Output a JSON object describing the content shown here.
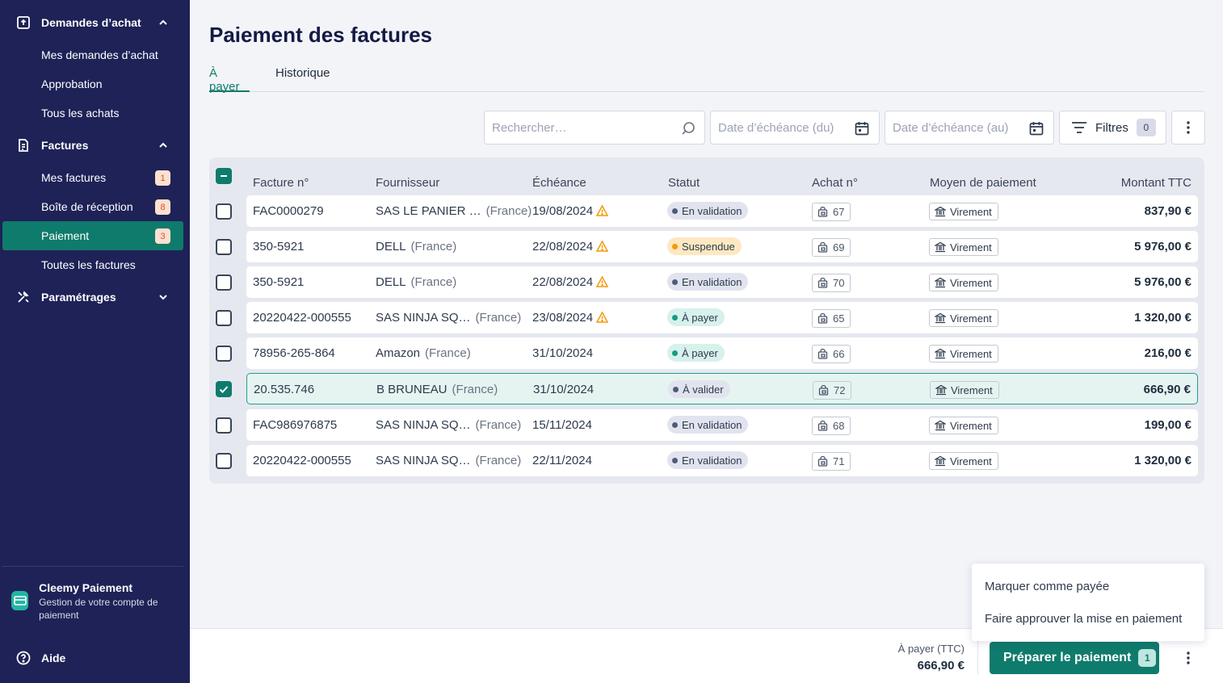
{
  "sidebar": {
    "purchase_requests": {
      "label": "Demandes d’achat",
      "items": [
        "Mes demandes d’achat",
        "Approbation",
        "Tous les achats"
      ]
    },
    "invoices": {
      "label": "Factures",
      "items": [
        {
          "label": "Mes factures",
          "badge": "1"
        },
        {
          "label": "Boîte de réception",
          "badge": "8"
        },
        {
          "label": "Paiement",
          "badge": "3",
          "active": true
        },
        {
          "label": "Toutes les factures",
          "badge": ""
        }
      ]
    },
    "settings": {
      "label": "Paramétrages"
    },
    "product": {
      "title": "Cleemy Paiement",
      "subtitle": "Gestion de votre compte de paiement"
    },
    "help": "Aide"
  },
  "page": {
    "title": "Paiement des factures",
    "tabs": [
      "À payer",
      "Historique"
    ],
    "active_tab": "À payer"
  },
  "toolbar": {
    "search_placeholder": "Rechercher…",
    "date_from_placeholder": "Date d’échéance (du)",
    "date_to_placeholder": "Date d’échéance (au)",
    "filters_label": "Filtres",
    "filters_count": "0"
  },
  "table": {
    "headers": [
      "Facture n°",
      "Fournisseur",
      "Échéance",
      "Statut",
      "Achat n°",
      "Moyen de paiement",
      "Montant TTC"
    ],
    "rows": [
      {
        "invoice": "FAC0000279",
        "supplier": "SAS LE PANIER …",
        "country": "(France)",
        "due": "19/08/2024",
        "warn": true,
        "status": "En validation",
        "status_kind": "val",
        "purchase": "67",
        "payment": "Virement",
        "amount": "837,90 €",
        "checked": false
      },
      {
        "invoice": "350-5921",
        "supplier": "DELL",
        "country": "(France)",
        "due": "22/08/2024",
        "warn": true,
        "status": "Suspendue",
        "status_kind": "sus",
        "purchase": "69",
        "payment": "Virement",
        "amount": "5 976,00 €",
        "checked": false
      },
      {
        "invoice": "350-5921",
        "supplier": "DELL",
        "country": "(France)",
        "due": "22/08/2024",
        "warn": true,
        "status": "En validation",
        "status_kind": "val",
        "purchase": "70",
        "payment": "Virement",
        "amount": "5 976,00 €",
        "checked": false
      },
      {
        "invoice": "20220422-000555",
        "supplier": "SAS NINJA SQ…",
        "country": "(France)",
        "due": "23/08/2024",
        "warn": true,
        "status": "À payer",
        "status_kind": "pay",
        "purchase": "65",
        "payment": "Virement",
        "amount": "1 320,00 €",
        "checked": false
      },
      {
        "invoice": "78956-265-864",
        "supplier": "Amazon",
        "country": "(France)",
        "due": "31/10/2024",
        "warn": false,
        "status": "À payer",
        "status_kind": "pay",
        "purchase": "66",
        "payment": "Virement",
        "amount": "216,00 €",
        "checked": false
      },
      {
        "invoice": "20.535.746",
        "supplier": "B BRUNEAU",
        "country": "(France)",
        "due": "31/10/2024",
        "warn": false,
        "status": "À valider",
        "status_kind": "avl",
        "purchase": "72",
        "payment": "Virement",
        "amount": "666,90 €",
        "checked": true
      },
      {
        "invoice": "FAC986976875",
        "supplier": "SAS NINJA SQ…",
        "country": "(France)",
        "due": "15/11/2024",
        "warn": false,
        "status": "En validation",
        "status_kind": "val",
        "purchase": "68",
        "payment": "Virement",
        "amount": "199,00 €",
        "checked": false
      },
      {
        "invoice": "20220422-000555",
        "supplier": "SAS NINJA SQ…",
        "country": "(France)",
        "due": "22/11/2024",
        "warn": false,
        "status": "En validation",
        "status_kind": "val",
        "purchase": "71",
        "payment": "Virement",
        "amount": "1 320,00 €",
        "checked": false
      }
    ]
  },
  "bottom_bar": {
    "total_label": "À payer (TTC)",
    "total_value": "666,90 €",
    "prepare_label": "Préparer le paiement",
    "prepare_count": "1"
  },
  "popup_menu": {
    "items": [
      "Marquer comme payée",
      "Faire approuver la mise en paiement"
    ]
  },
  "colors": {
    "sidebar_bg": "#1e2257",
    "accent": "#0f7b6c",
    "warning": "#f29a0a"
  }
}
